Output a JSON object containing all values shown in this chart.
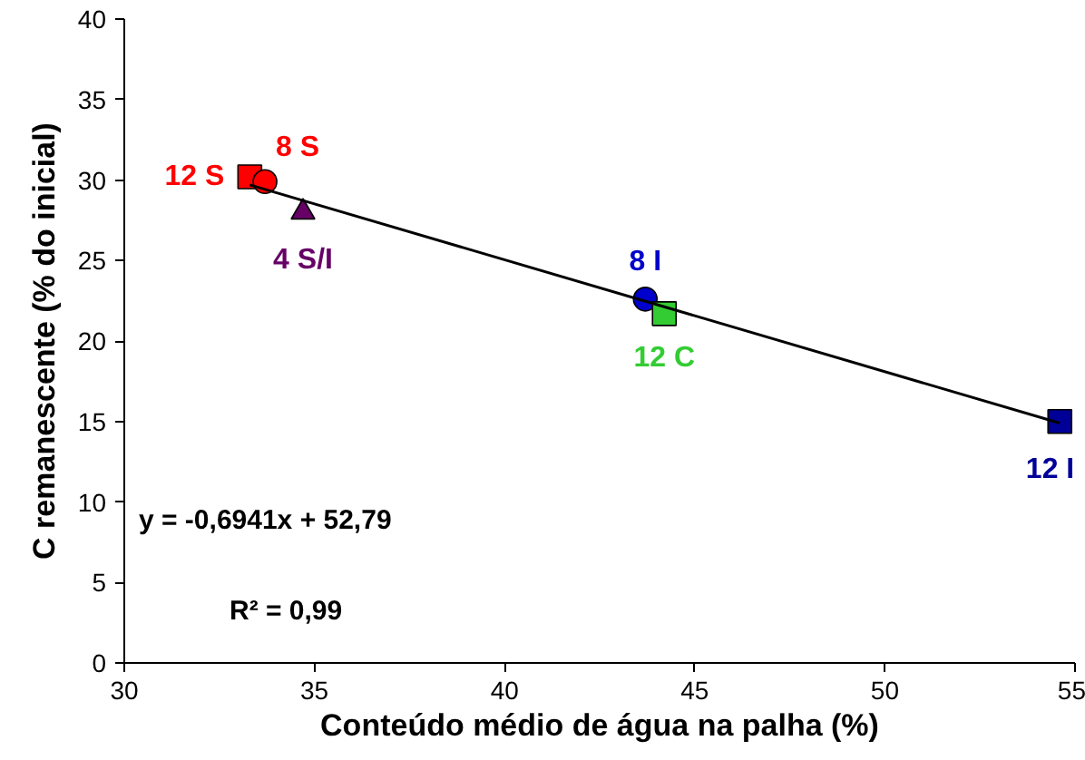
{
  "chart_data": {
    "type": "scatter",
    "xlabel": "Conteúdo médio de água na palha (%)",
    "ylabel": "C remanescente (% do inicial)",
    "xlim": [
      30,
      55
    ],
    "xticks": [
      30,
      35,
      40,
      45,
      50,
      55
    ],
    "ylim": [
      0,
      40
    ],
    "yticks": [
      0,
      5,
      10,
      15,
      20,
      25,
      30,
      35,
      40
    ],
    "grid": false,
    "series": [
      {
        "name": "12 S",
        "color": "#ff0000",
        "marker": "square",
        "x": [
          33.3
        ],
        "values": [
          30.2
        ]
      },
      {
        "name": "8 S",
        "color": "#ff0000",
        "marker": "circle",
        "x": [
          33.7
        ],
        "values": [
          29.9
        ]
      },
      {
        "name": "4 S/I",
        "color": "#660066",
        "marker": "triangle",
        "x": [
          34.7
        ],
        "values": [
          28.0
        ]
      },
      {
        "name": "8 I",
        "color": "#0000cc",
        "marker": "circle",
        "x": [
          43.7
        ],
        "values": [
          22.6
        ]
      },
      {
        "name": "12 C",
        "color": "#33cc33",
        "marker": "square",
        "x": [
          44.2
        ],
        "values": [
          21.7
        ]
      },
      {
        "name": "12 I",
        "color": "#000099",
        "marker": "square",
        "x": [
          54.6
        ],
        "values": [
          15.0
        ]
      },
      {
        "type": "line",
        "color": "#000000",
        "x": [
          33.3,
          54.6
        ],
        "values": [
          29.7,
          14.9
        ]
      }
    ],
    "annotations": [
      "y = -0,6941x + 52,79",
      "R² = 0,99"
    ]
  }
}
